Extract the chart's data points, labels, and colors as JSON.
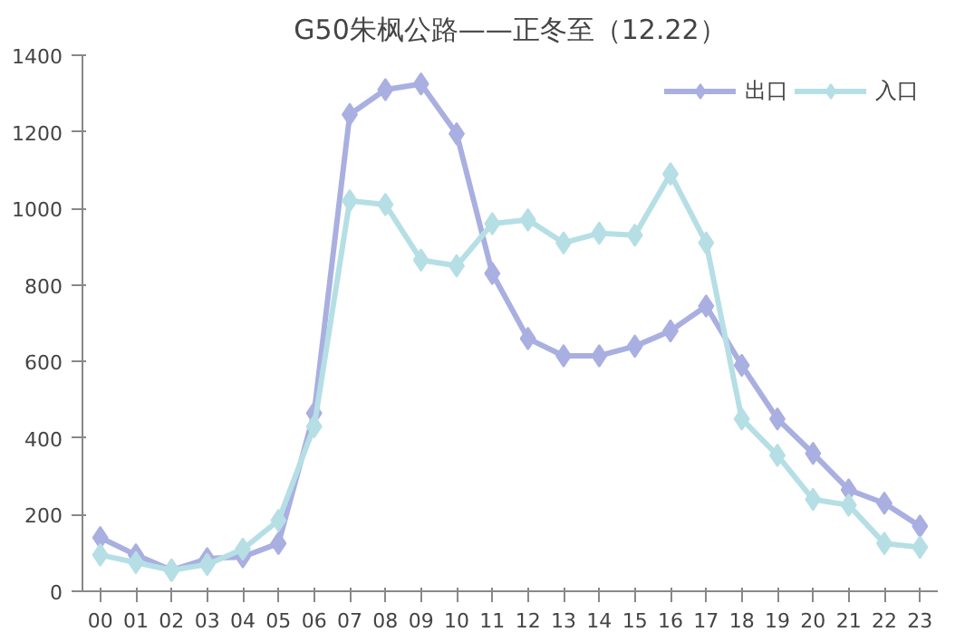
{
  "chart_data": {
    "type": "line",
    "title": "G50朱枫公路——正冬至（12.22）",
    "categories": [
      "00",
      "01",
      "02",
      "03",
      "04",
      "05",
      "06",
      "07",
      "08",
      "09",
      "10",
      "11",
      "12",
      "13",
      "14",
      "15",
      "16",
      "17",
      "18",
      "19",
      "20",
      "21",
      "22",
      "23"
    ],
    "series": [
      {
        "name": "出口",
        "color": "#a9afe0",
        "values": [
          140,
          95,
          55,
          85,
          90,
          125,
          465,
          1245,
          1310,
          1325,
          1195,
          830,
          660,
          615,
          615,
          640,
          680,
          745,
          590,
          450,
          360,
          265,
          230,
          170
        ]
      },
      {
        "name": "入口",
        "color": "#b5dfe5",
        "values": [
          95,
          75,
          55,
          70,
          110,
          185,
          430,
          1020,
          1010,
          865,
          850,
          960,
          970,
          910,
          935,
          930,
          1090,
          910,
          450,
          355,
          240,
          225,
          125,
          115
        ]
      }
    ],
    "ylim": [
      0,
      1400
    ],
    "yticks": [
      0,
      200,
      400,
      600,
      800,
      1000,
      1200,
      1400
    ],
    "grid": false,
    "legend": "top right",
    "marker": "diamond",
    "line_style": "solid"
  }
}
